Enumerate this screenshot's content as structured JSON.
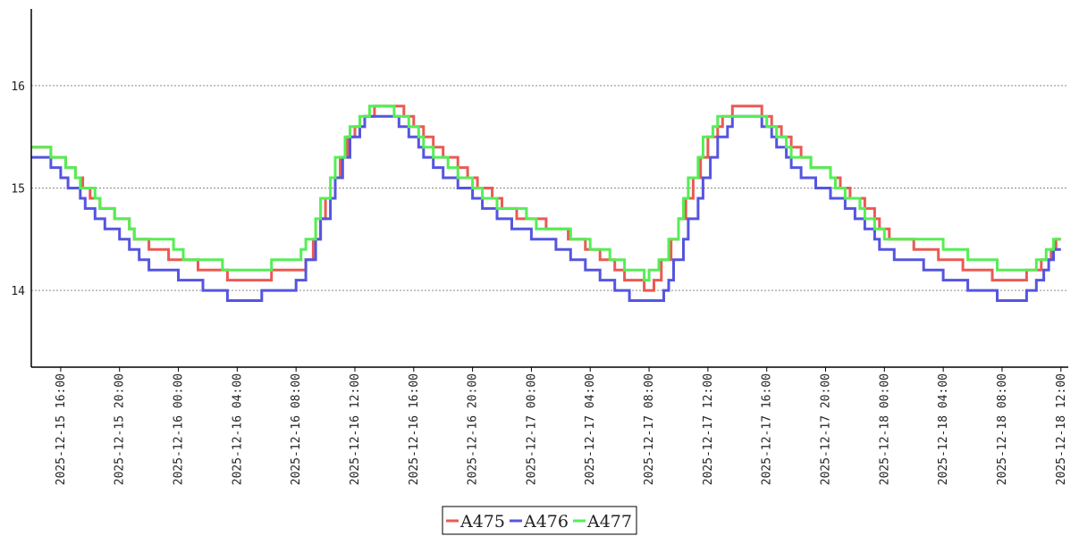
{
  "chart_data": {
    "type": "line",
    "step": true,
    "title": "",
    "xlabel": "",
    "ylabel": "",
    "ylim": [
      13.25,
      16.75
    ],
    "xlim": [
      "2025-12-15 14:00",
      "2025-12-18 12:30"
    ],
    "grid": {
      "y": true,
      "x": false,
      "style": "dotted"
    },
    "legend_position": "bottom-center",
    "y_ticks": [
      {
        "value": 14,
        "label": "14"
      },
      {
        "value": 15,
        "label": "15"
      },
      {
        "value": 16,
        "label": "16"
      }
    ],
    "x_ticks": [
      {
        "value": "2025-12-15 16:00",
        "label": "2025-12-15 16:00"
      },
      {
        "value": "2025-12-15 20:00",
        "label": "2025-12-15 20:00"
      },
      {
        "value": "2025-12-16 00:00",
        "label": "2025-12-16 00:00"
      },
      {
        "value": "2025-12-16 04:00",
        "label": "2025-12-16 04:00"
      },
      {
        "value": "2025-12-16 08:00",
        "label": "2025-12-16 08:00"
      },
      {
        "value": "2025-12-16 12:00",
        "label": "2025-12-16 12:00"
      },
      {
        "value": "2025-12-16 16:00",
        "label": "2025-12-16 16:00"
      },
      {
        "value": "2025-12-16 20:00",
        "label": "2025-12-16 20:00"
      },
      {
        "value": "2025-12-17 00:00",
        "label": "2025-12-17 00:00"
      },
      {
        "value": "2025-12-17 04:00",
        "label": "2025-12-17 04:00"
      },
      {
        "value": "2025-12-17 08:00",
        "label": "2025-12-17 08:00"
      },
      {
        "value": "2025-12-17 12:00",
        "label": "2025-12-17 12:00"
      },
      {
        "value": "2025-12-17 16:00",
        "label": "2025-12-17 16:00"
      },
      {
        "value": "2025-12-17 20:00",
        "label": "2025-12-17 20:00"
      },
      {
        "value": "2025-12-18 00:00",
        "label": "2025-12-18 00:00"
      },
      {
        "value": "2025-12-18 04:00",
        "label": "2025-12-18 04:00"
      },
      {
        "value": "2025-12-18 08:00",
        "label": "2025-12-18 08:00"
      },
      {
        "value": "2025-12-18 12:00",
        "label": "2025-12-18 12:00"
      }
    ],
    "series": [
      {
        "name": "A475",
        "color": "#ea5a54",
        "points": [
          [
            "2025-12-15 14:00",
            15.4
          ],
          [
            "2025-12-15 15:20",
            15.3
          ],
          [
            "2025-12-15 16:20",
            15.2
          ],
          [
            "2025-12-15 17:00",
            15.1
          ],
          [
            "2025-12-15 17:30",
            15.0
          ],
          [
            "2025-12-15 18:00",
            14.9
          ],
          [
            "2025-12-15 18:40",
            14.8
          ],
          [
            "2025-12-15 19:40",
            14.7
          ],
          [
            "2025-12-15 20:40",
            14.6
          ],
          [
            "2025-12-15 21:00",
            14.5
          ],
          [
            "2025-12-15 22:00",
            14.4
          ],
          [
            "2025-12-15 23:20",
            14.3
          ],
          [
            "2025-12-16 01:20",
            14.2
          ],
          [
            "2025-12-16 03:20",
            14.1
          ],
          [
            "2025-12-16 06:20",
            14.2
          ],
          [
            "2025-12-16 08:40",
            14.3
          ],
          [
            "2025-12-16 09:10",
            14.5
          ],
          [
            "2025-12-16 09:40",
            14.7
          ],
          [
            "2025-12-16 10:00",
            14.9
          ],
          [
            "2025-12-16 10:40",
            15.1
          ],
          [
            "2025-12-16 11:00",
            15.3
          ],
          [
            "2025-12-16 11:30",
            15.5
          ],
          [
            "2025-12-16 12:00",
            15.6
          ],
          [
            "2025-12-16 12:40",
            15.7
          ],
          [
            "2025-12-16 13:20",
            15.8
          ],
          [
            "2025-12-16 15:20",
            15.7
          ],
          [
            "2025-12-16 16:00",
            15.6
          ],
          [
            "2025-12-16 16:40",
            15.5
          ],
          [
            "2025-12-16 17:20",
            15.4
          ],
          [
            "2025-12-16 18:00",
            15.3
          ],
          [
            "2025-12-16 19:00",
            15.2
          ],
          [
            "2025-12-16 19:40",
            15.1
          ],
          [
            "2025-12-16 20:20",
            15.0
          ],
          [
            "2025-12-16 21:20",
            14.9
          ],
          [
            "2025-12-16 22:00",
            14.8
          ],
          [
            "2025-12-16 23:00",
            14.7
          ],
          [
            "2025-12-17 01:00",
            14.6
          ],
          [
            "2025-12-17 02:30",
            14.5
          ],
          [
            "2025-12-17 03:40",
            14.4
          ],
          [
            "2025-12-17 04:40",
            14.3
          ],
          [
            "2025-12-17 05:40",
            14.2
          ],
          [
            "2025-12-17 06:20",
            14.1
          ],
          [
            "2025-12-17 07:40",
            14.0
          ],
          [
            "2025-12-17 08:20",
            14.1
          ],
          [
            "2025-12-17 08:50",
            14.3
          ],
          [
            "2025-12-17 09:30",
            14.5
          ],
          [
            "2025-12-17 10:00",
            14.7
          ],
          [
            "2025-12-17 10:30",
            14.9
          ],
          [
            "2025-12-17 11:00",
            15.1
          ],
          [
            "2025-12-17 11:30",
            15.3
          ],
          [
            "2025-12-17 12:00",
            15.5
          ],
          [
            "2025-12-17 12:40",
            15.6
          ],
          [
            "2025-12-17 13:00",
            15.7
          ],
          [
            "2025-12-17 13:40",
            15.8
          ],
          [
            "2025-12-17 15:40",
            15.7
          ],
          [
            "2025-12-17 16:20",
            15.6
          ],
          [
            "2025-12-17 17:00",
            15.5
          ],
          [
            "2025-12-17 17:40",
            15.4
          ],
          [
            "2025-12-17 18:20",
            15.3
          ],
          [
            "2025-12-17 19:00",
            15.2
          ],
          [
            "2025-12-17 20:20",
            15.1
          ],
          [
            "2025-12-17 21:00",
            15.0
          ],
          [
            "2025-12-17 21:40",
            14.9
          ],
          [
            "2025-12-17 22:40",
            14.8
          ],
          [
            "2025-12-17 23:20",
            14.7
          ],
          [
            "2025-12-17 23:40",
            14.6
          ],
          [
            "2025-12-18 00:20",
            14.5
          ],
          [
            "2025-12-18 02:00",
            14.4
          ],
          [
            "2025-12-18 03:40",
            14.3
          ],
          [
            "2025-12-18 05:20",
            14.2
          ],
          [
            "2025-12-18 07:20",
            14.1
          ],
          [
            "2025-12-18 09:40",
            14.2
          ],
          [
            "2025-12-18 10:40",
            14.3
          ],
          [
            "2025-12-18 11:20",
            14.4
          ],
          [
            "2025-12-18 11:40",
            14.5
          ],
          [
            "2025-12-18 12:00",
            14.5
          ]
        ]
      },
      {
        "name": "A476",
        "color": "#5555e0",
        "points": [
          [
            "2025-12-15 14:00",
            15.3
          ],
          [
            "2025-12-15 15:20",
            15.2
          ],
          [
            "2025-12-15 16:00",
            15.1
          ],
          [
            "2025-12-15 16:30",
            15.0
          ],
          [
            "2025-12-15 17:20",
            14.9
          ],
          [
            "2025-12-15 17:40",
            14.8
          ],
          [
            "2025-12-15 18:20",
            14.7
          ],
          [
            "2025-12-15 19:00",
            14.6
          ],
          [
            "2025-12-15 20:00",
            14.5
          ],
          [
            "2025-12-15 20:40",
            14.4
          ],
          [
            "2025-12-15 21:20",
            14.3
          ],
          [
            "2025-12-15 22:00",
            14.2
          ],
          [
            "2025-12-16 00:00",
            14.1
          ],
          [
            "2025-12-16 01:40",
            14.0
          ],
          [
            "2025-12-16 03:20",
            13.9
          ],
          [
            "2025-12-16 05:40",
            14.0
          ],
          [
            "2025-12-16 08:00",
            14.1
          ],
          [
            "2025-12-16 08:40",
            14.3
          ],
          [
            "2025-12-16 09:20",
            14.5
          ],
          [
            "2025-12-16 09:40",
            14.7
          ],
          [
            "2025-12-16 10:20",
            14.9
          ],
          [
            "2025-12-16 10:40",
            15.1
          ],
          [
            "2025-12-16 11:10",
            15.3
          ],
          [
            "2025-12-16 11:40",
            15.5
          ],
          [
            "2025-12-16 12:20",
            15.6
          ],
          [
            "2025-12-16 12:40",
            15.7
          ],
          [
            "2025-12-16 15:00",
            15.6
          ],
          [
            "2025-12-16 15:40",
            15.5
          ],
          [
            "2025-12-16 16:20",
            15.4
          ],
          [
            "2025-12-16 16:40",
            15.3
          ],
          [
            "2025-12-16 17:20",
            15.2
          ],
          [
            "2025-12-16 18:00",
            15.1
          ],
          [
            "2025-12-16 19:00",
            15.0
          ],
          [
            "2025-12-16 20:00",
            14.9
          ],
          [
            "2025-12-16 20:40",
            14.8
          ],
          [
            "2025-12-16 21:40",
            14.7
          ],
          [
            "2025-12-16 22:40",
            14.6
          ],
          [
            "2025-12-17 00:00",
            14.5
          ],
          [
            "2025-12-17 01:40",
            14.4
          ],
          [
            "2025-12-17 02:40",
            14.3
          ],
          [
            "2025-12-17 03:40",
            14.2
          ],
          [
            "2025-12-17 04:40",
            14.1
          ],
          [
            "2025-12-17 05:40",
            14.0
          ],
          [
            "2025-12-17 06:40",
            13.9
          ],
          [
            "2025-12-17 09:00",
            14.0
          ],
          [
            "2025-12-17 09:20",
            14.1
          ],
          [
            "2025-12-17 09:40",
            14.3
          ],
          [
            "2025-12-17 10:20",
            14.5
          ],
          [
            "2025-12-17 10:40",
            14.7
          ],
          [
            "2025-12-17 11:20",
            14.9
          ],
          [
            "2025-12-17 11:40",
            15.1
          ],
          [
            "2025-12-17 12:10",
            15.3
          ],
          [
            "2025-12-17 12:40",
            15.5
          ],
          [
            "2025-12-17 13:20",
            15.6
          ],
          [
            "2025-12-17 13:40",
            15.7
          ],
          [
            "2025-12-17 15:40",
            15.6
          ],
          [
            "2025-12-17 16:20",
            15.5
          ],
          [
            "2025-12-17 16:40",
            15.4
          ],
          [
            "2025-12-17 17:20",
            15.3
          ],
          [
            "2025-12-17 17:40",
            15.2
          ],
          [
            "2025-12-17 18:20",
            15.1
          ],
          [
            "2025-12-17 19:20",
            15.0
          ],
          [
            "2025-12-17 20:20",
            14.9
          ],
          [
            "2025-12-17 21:20",
            14.8
          ],
          [
            "2025-12-17 22:00",
            14.7
          ],
          [
            "2025-12-17 22:40",
            14.6
          ],
          [
            "2025-12-17 23:20",
            14.5
          ],
          [
            "2025-12-17 23:40",
            14.4
          ],
          [
            "2025-12-18 00:40",
            14.3
          ],
          [
            "2025-12-18 02:40",
            14.2
          ],
          [
            "2025-12-18 04:00",
            14.1
          ],
          [
            "2025-12-18 05:40",
            14.0
          ],
          [
            "2025-12-18 07:40",
            13.9
          ],
          [
            "2025-12-18 09:40",
            14.0
          ],
          [
            "2025-12-18 10:20",
            14.1
          ],
          [
            "2025-12-18 10:50",
            14.2
          ],
          [
            "2025-12-18 11:10",
            14.3
          ],
          [
            "2025-12-18 11:30",
            14.4
          ],
          [
            "2025-12-18 12:00",
            14.4
          ]
        ]
      },
      {
        "name": "A477",
        "color": "#55ee55",
        "points": [
          [
            "2025-12-15 14:00",
            15.4
          ],
          [
            "2025-12-15 15:20",
            15.3
          ],
          [
            "2025-12-15 16:20",
            15.2
          ],
          [
            "2025-12-15 17:00",
            15.1
          ],
          [
            "2025-12-15 17:20",
            15.0
          ],
          [
            "2025-12-15 18:20",
            14.9
          ],
          [
            "2025-12-15 18:40",
            14.8
          ],
          [
            "2025-12-15 19:40",
            14.7
          ],
          [
            "2025-12-15 20:40",
            14.6
          ],
          [
            "2025-12-15 21:00",
            14.5
          ],
          [
            "2025-12-15 23:40",
            14.4
          ],
          [
            "2025-12-16 00:20",
            14.3
          ],
          [
            "2025-12-16 03:00",
            14.2
          ],
          [
            "2025-12-16 06:20",
            14.3
          ],
          [
            "2025-12-16 08:20",
            14.4
          ],
          [
            "2025-12-16 08:40",
            14.5
          ],
          [
            "2025-12-16 09:20",
            14.7
          ],
          [
            "2025-12-16 09:40",
            14.9
          ],
          [
            "2025-12-16 10:20",
            15.1
          ],
          [
            "2025-12-16 10:40",
            15.3
          ],
          [
            "2025-12-16 11:20",
            15.5
          ],
          [
            "2025-12-16 11:40",
            15.6
          ],
          [
            "2025-12-16 12:20",
            15.7
          ],
          [
            "2025-12-16 13:00",
            15.8
          ],
          [
            "2025-12-16 14:40",
            15.7
          ],
          [
            "2025-12-16 15:40",
            15.6
          ],
          [
            "2025-12-16 16:20",
            15.5
          ],
          [
            "2025-12-16 16:40",
            15.4
          ],
          [
            "2025-12-16 17:20",
            15.3
          ],
          [
            "2025-12-16 18:20",
            15.2
          ],
          [
            "2025-12-16 19:00",
            15.1
          ],
          [
            "2025-12-16 20:00",
            15.0
          ],
          [
            "2025-12-16 20:40",
            14.9
          ],
          [
            "2025-12-16 21:40",
            14.8
          ],
          [
            "2025-12-16 23:40",
            14.7
          ],
          [
            "2025-12-17 00:20",
            14.6
          ],
          [
            "2025-12-17 02:40",
            14.5
          ],
          [
            "2025-12-17 04:00",
            14.4
          ],
          [
            "2025-12-17 05:20",
            14.3
          ],
          [
            "2025-12-17 06:20",
            14.2
          ],
          [
            "2025-12-17 07:40",
            14.1
          ],
          [
            "2025-12-17 08:00",
            14.2
          ],
          [
            "2025-12-17 08:40",
            14.3
          ],
          [
            "2025-12-17 09:20",
            14.5
          ],
          [
            "2025-12-17 10:00",
            14.7
          ],
          [
            "2025-12-17 10:20",
            14.9
          ],
          [
            "2025-12-17 10:40",
            15.1
          ],
          [
            "2025-12-17 11:20",
            15.3
          ],
          [
            "2025-12-17 11:40",
            15.5
          ],
          [
            "2025-12-17 12:20",
            15.6
          ],
          [
            "2025-12-17 12:40",
            15.7
          ],
          [
            "2025-12-17 16:00",
            15.6
          ],
          [
            "2025-12-17 16:40",
            15.5
          ],
          [
            "2025-12-17 17:20",
            15.4
          ],
          [
            "2025-12-17 17:40",
            15.3
          ],
          [
            "2025-12-17 19:00",
            15.2
          ],
          [
            "2025-12-17 20:20",
            15.1
          ],
          [
            "2025-12-17 20:40",
            15.0
          ],
          [
            "2025-12-17 21:20",
            14.9
          ],
          [
            "2025-12-17 22:20",
            14.8
          ],
          [
            "2025-12-17 22:40",
            14.7
          ],
          [
            "2025-12-17 23:20",
            14.6
          ],
          [
            "2025-12-18 00:00",
            14.5
          ],
          [
            "2025-12-18 04:00",
            14.4
          ],
          [
            "2025-12-18 05:40",
            14.3
          ],
          [
            "2025-12-18 07:40",
            14.2
          ],
          [
            "2025-12-18 10:20",
            14.3
          ],
          [
            "2025-12-18 11:00",
            14.4
          ],
          [
            "2025-12-18 11:30",
            14.5
          ],
          [
            "2025-12-18 12:00",
            14.5
          ]
        ]
      }
    ]
  }
}
